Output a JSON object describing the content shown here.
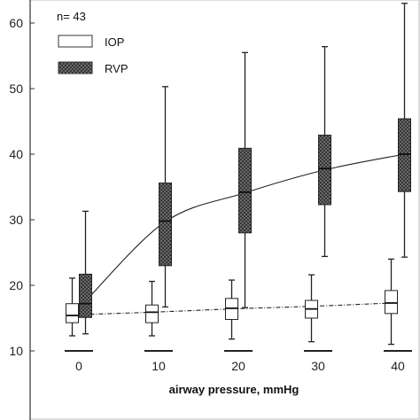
{
  "chart_data": {
    "type": "box",
    "annotation": "n= 43",
    "xlabel": "airway pressure, mmHg",
    "ylabel": "",
    "categories": [
      "0",
      "10",
      "20",
      "30",
      "40"
    ],
    "x": [
      0,
      10,
      20,
      30,
      40
    ],
    "ylim": [
      10,
      62
    ],
    "yticks": [
      10,
      20,
      30,
      40,
      50,
      60
    ],
    "grid": false,
    "legend_position": "top-left",
    "series": [
      {
        "name": "IOP",
        "fill": "#ffffff",
        "pattern": "none",
        "trend_style": "dash-dot",
        "boxes": [
          {
            "min": 12.3,
            "q1": 14.3,
            "median": 15.4,
            "q3": 17.2,
            "max": 21.1
          },
          {
            "min": 12.3,
            "q1": 14.3,
            "median": 15.9,
            "q3": 17.0,
            "max": 20.6
          },
          {
            "min": 11.8,
            "q1": 14.8,
            "median": 16.5,
            "q3": 18.0,
            "max": 20.8
          },
          {
            "min": 11.4,
            "q1": 15.0,
            "median": 16.4,
            "q3": 17.7,
            "max": 21.6
          },
          {
            "min": 11.0,
            "q1": 15.7,
            "median": 17.3,
            "q3": 19.2,
            "max": 24.0
          }
        ],
        "trend": [
          15.5,
          15.9,
          16.4,
          16.8,
          17.3
        ]
      },
      {
        "name": "RVP",
        "fill": "#888888",
        "pattern": "crosshatch",
        "trend_style": "solid",
        "boxes": [
          {
            "min": 12.6,
            "q1": 15.1,
            "median": 17.2,
            "q3": 21.7,
            "max": 31.3
          },
          {
            "min": 16.7,
            "q1": 23.0,
            "median": 29.8,
            "q3": 35.6,
            "max": 50.3
          },
          {
            "min": 16.6,
            "q1": 28.0,
            "median": 34.2,
            "q3": 40.9,
            "max": 55.5
          },
          {
            "min": 24.4,
            "q1": 32.3,
            "median": 37.8,
            "q3": 42.9,
            "max": 56.4
          },
          {
            "min": 24.3,
            "q1": 34.3,
            "median": 40.0,
            "q3": 45.4,
            "max": 63.0
          }
        ],
        "trend": [
          17.6,
          29.7,
          34.1,
          37.6,
          40.0
        ]
      }
    ]
  }
}
